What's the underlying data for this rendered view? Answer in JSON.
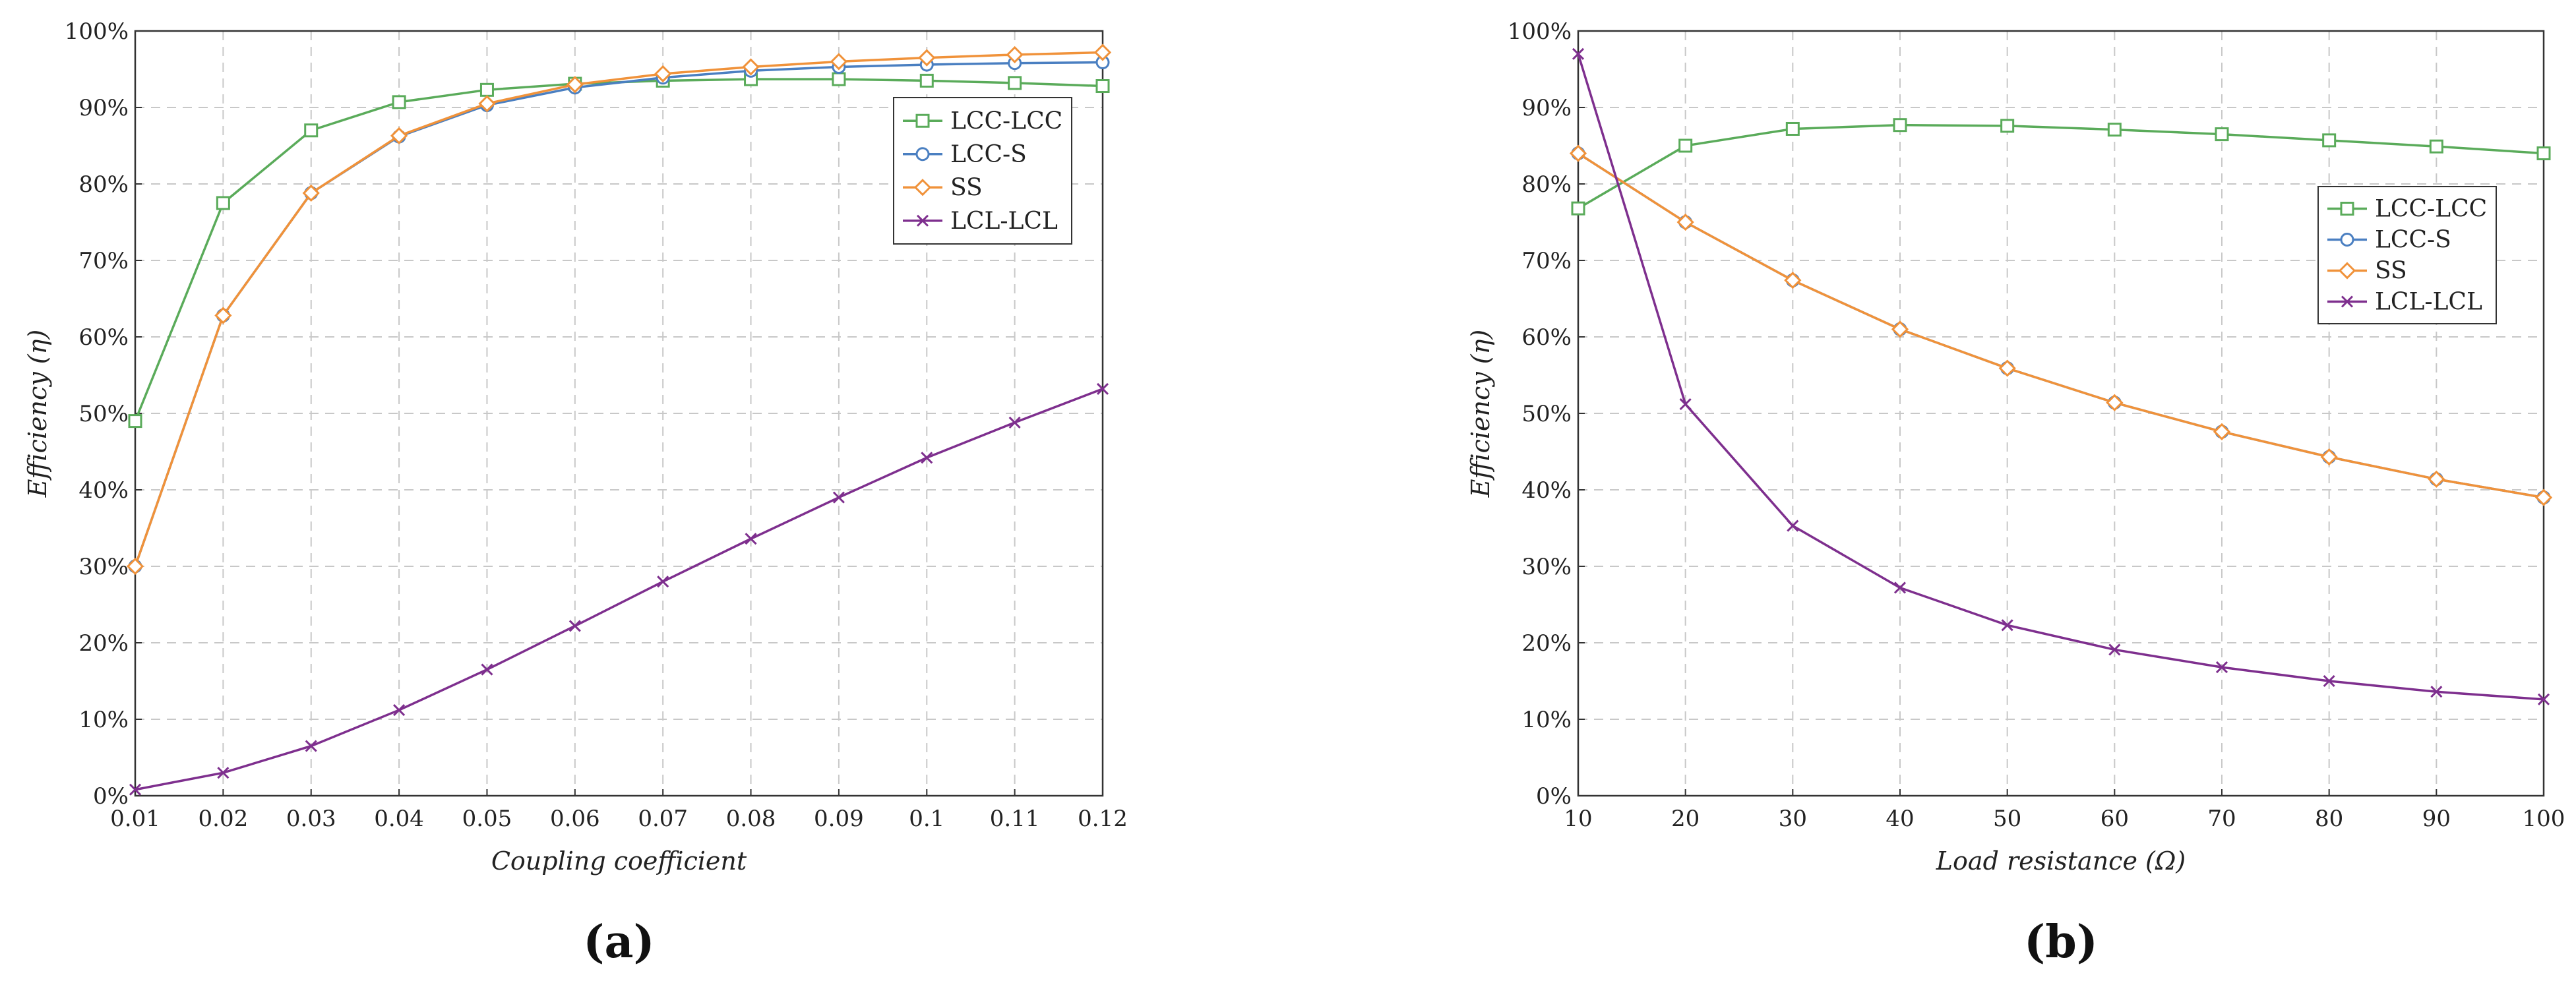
{
  "chart_data": [
    {
      "type": "line",
      "panel_label": "(a)",
      "xlabel": "Coupling coefficient",
      "ylabel": "Efficiency (η)",
      "xlim": [
        0.01,
        0.12
      ],
      "ylim": [
        0,
        100
      ],
      "x_ticks": [
        "0.01",
        "0.02",
        "0.03",
        "0.04",
        "0.05",
        "0.06",
        "0.07",
        "0.08",
        "0.09",
        "0.1",
        "0.11",
        "0.12"
      ],
      "y_ticks": [
        "0%",
        "10%",
        "20%",
        "30%",
        "40%",
        "50%",
        "60%",
        "70%",
        "80%",
        "90%",
        "100%"
      ],
      "grid": true,
      "legend_position": "top-right",
      "x": [
        0.01,
        0.02,
        0.03,
        0.04,
        0.05,
        0.06,
        0.07,
        0.08,
        0.09,
        0.1,
        0.11,
        0.12
      ],
      "series": [
        {
          "name": "LCC-LCC",
          "color": "#5aab5a",
          "marker": "square",
          "values": [
            49,
            77.5,
            87,
            90.7,
            92.3,
            93.1,
            93.5,
            93.7,
            93.7,
            93.5,
            93.2,
            92.8
          ]
        },
        {
          "name": "LCC-S",
          "color": "#4a7fc1",
          "marker": "circle",
          "values": [
            30,
            62.8,
            78.8,
            86.2,
            90.3,
            92.6,
            93.9,
            94.8,
            95.3,
            95.6,
            95.8,
            95.9
          ]
        },
        {
          "name": "SS",
          "color": "#f0923a",
          "marker": "diamond",
          "values": [
            30,
            62.8,
            78.8,
            86.3,
            90.5,
            93.0,
            94.4,
            95.3,
            96.0,
            96.5,
            96.9,
            97.2
          ]
        },
        {
          "name": "LCL-LCL",
          "color": "#7e2f8e",
          "marker": "x",
          "values": [
            0.8,
            3,
            6.5,
            11.2,
            16.5,
            22.2,
            28,
            33.6,
            39,
            44.2,
            48.8,
            53.2
          ]
        }
      ]
    },
    {
      "type": "line",
      "panel_label": "(b)",
      "xlabel": "Load resistance (Ω)",
      "ylabel": "Efficiency (η)",
      "xlim": [
        10,
        100
      ],
      "ylim": [
        0,
        100
      ],
      "x_ticks": [
        "10",
        "20",
        "30",
        "40",
        "50",
        "60",
        "70",
        "80",
        "90",
        "100"
      ],
      "y_ticks": [
        "0%",
        "10%",
        "20%",
        "30%",
        "40%",
        "50%",
        "60%",
        "70%",
        "80%",
        "90%",
        "100%"
      ],
      "grid": true,
      "legend_position": "top-right",
      "x": [
        10,
        20,
        30,
        40,
        50,
        60,
        70,
        80,
        90,
        100
      ],
      "series": [
        {
          "name": "LCC-LCC",
          "color": "#5aab5a",
          "marker": "square",
          "values": [
            76.8,
            85,
            87.2,
            87.7,
            87.6,
            87.1,
            86.5,
            85.7,
            84.9,
            84
          ]
        },
        {
          "name": "LCC-S",
          "color": "#4a7fc1",
          "marker": "circle",
          "values": [
            84,
            75,
            67.4,
            61,
            55.9,
            51.4,
            47.6,
            44.3,
            41.4,
            39
          ]
        },
        {
          "name": "SS",
          "color": "#f0923a",
          "marker": "diamond",
          "values": [
            84,
            75,
            67.4,
            61,
            55.9,
            51.4,
            47.6,
            44.3,
            41.4,
            39
          ]
        },
        {
          "name": "LCL-LCL",
          "color": "#7e2f8e",
          "marker": "x",
          "values": [
            97,
            51.2,
            35.3,
            27.2,
            22.3,
            19.1,
            16.8,
            15,
            13.6,
            12.6
          ]
        }
      ]
    }
  ]
}
